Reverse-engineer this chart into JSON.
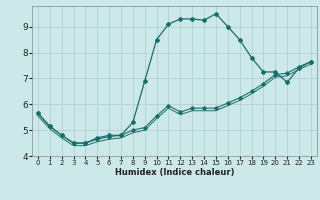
{
  "xlabel": "Humidex (Indice chaleur)",
  "bg_color": "#cce8e8",
  "grid_color": "#aacece",
  "line_color": "#1a6e6a",
  "xlim": [
    -0.5,
    23.5
  ],
  "ylim": [
    4,
    9.8
  ],
  "x_ticks": [
    0,
    1,
    2,
    3,
    4,
    5,
    6,
    7,
    8,
    9,
    10,
    11,
    12,
    13,
    14,
    15,
    16,
    17,
    18,
    19,
    20,
    21,
    22,
    23
  ],
  "y_ticks": [
    4,
    5,
    6,
    7,
    8,
    9
  ],
  "series_main": {
    "x": [
      0,
      1,
      2,
      3,
      4,
      5,
      6,
      7,
      8,
      9,
      10,
      11,
      12,
      13,
      14,
      15,
      16,
      17,
      18,
      19,
      20,
      21,
      22,
      23
    ],
    "y": [
      5.65,
      5.15,
      4.8,
      4.5,
      4.5,
      4.7,
      4.8,
      4.8,
      5.3,
      6.9,
      8.5,
      9.1,
      9.3,
      9.3,
      9.25,
      9.5,
      9.0,
      8.5,
      7.8,
      7.25,
      7.25,
      6.85,
      7.4,
      7.65
    ]
  },
  "series_mid": {
    "x": [
      0,
      1,
      2,
      3,
      4,
      5,
      6,
      7,
      8,
      9,
      10,
      11,
      12,
      13,
      14,
      15,
      16,
      17,
      18,
      19,
      20,
      21,
      22,
      23
    ],
    "y": [
      5.65,
      5.15,
      4.8,
      4.5,
      4.5,
      4.65,
      4.75,
      4.8,
      5.0,
      5.1,
      5.55,
      5.95,
      5.7,
      5.85,
      5.85,
      5.85,
      6.05,
      6.25,
      6.5,
      6.8,
      7.15,
      7.2,
      7.45,
      7.65
    ]
  },
  "series_low": {
    "x": [
      0,
      1,
      2,
      3,
      4,
      5,
      6,
      7,
      8,
      9,
      10,
      11,
      12,
      13,
      14,
      15,
      16,
      17,
      18,
      19,
      20,
      21,
      22,
      23
    ],
    "y": [
      5.55,
      5.05,
      4.7,
      4.4,
      4.4,
      4.55,
      4.65,
      4.7,
      4.9,
      5.0,
      5.45,
      5.85,
      5.6,
      5.75,
      5.75,
      5.75,
      5.95,
      6.15,
      6.4,
      6.7,
      7.05,
      7.1,
      7.35,
      7.55
    ]
  }
}
